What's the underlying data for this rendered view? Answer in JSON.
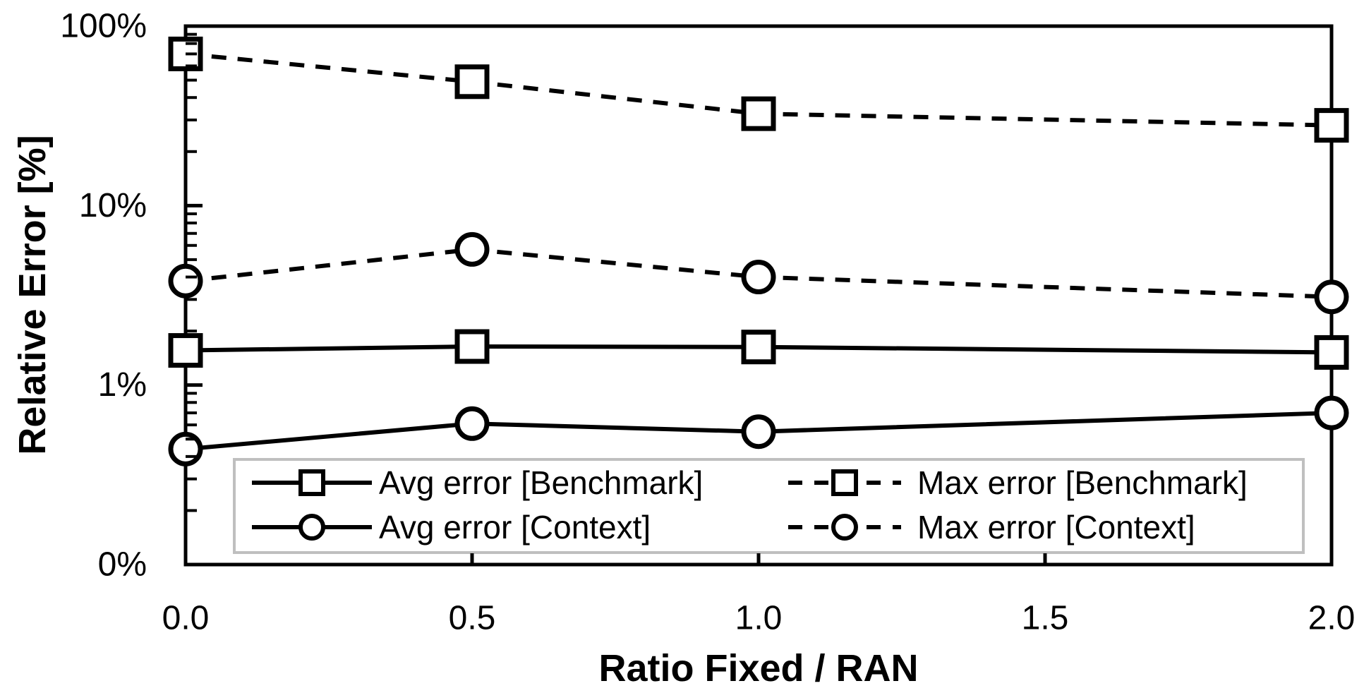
{
  "chart_data": {
    "type": "line",
    "title": "",
    "xlabel": "Ratio Fixed / RAN",
    "ylabel": "Relative Error [%]",
    "y_scale": "log",
    "ylim_pct": [
      0.1,
      100
    ],
    "xlim": [
      0,
      2
    ],
    "x": [
      0,
      0.5,
      1,
      2
    ],
    "x_ticks": [
      0,
      0.5,
      1,
      1.5,
      2
    ],
    "x_tick_labels": [
      "0.0",
      "0.5",
      "1.0",
      "1.5",
      "2.0"
    ],
    "y_ticks": [
      {
        "value": 100,
        "label": "100%"
      },
      {
        "value": 10,
        "label": "10%"
      },
      {
        "value": 1,
        "label": "1%"
      },
      {
        "value": 0.1,
        "label": "0%"
      }
    ],
    "grid": "off",
    "series": [
      {
        "name": "Avg error [Benchmark]",
        "marker": "square",
        "line": "solid",
        "values_pct": [
          1.56,
          1.64,
          1.63,
          1.52
        ]
      },
      {
        "name": "Max error [Benchmark]",
        "marker": "square",
        "line": "dashed",
        "values_pct": [
          70,
          49,
          32.5,
          28
        ]
      },
      {
        "name": "Avg error [Context]",
        "marker": "circle",
        "line": "solid",
        "values_pct": [
          0.44,
          0.61,
          0.55,
          0.7
        ]
      },
      {
        "name": "Max error [Context]",
        "marker": "circle",
        "line": "dashed",
        "values_pct": [
          3.8,
          5.7,
          4.0,
          3.1
        ]
      }
    ],
    "legend": {
      "position": "bottom-inside",
      "columns": [
        [
          0,
          2
        ],
        [
          1,
          3
        ]
      ]
    },
    "colors": {
      "line": "#000000",
      "marker_fill": "#FFFFFF",
      "background": "#FFFFFF",
      "legend_border": "#BFBFBF"
    }
  }
}
